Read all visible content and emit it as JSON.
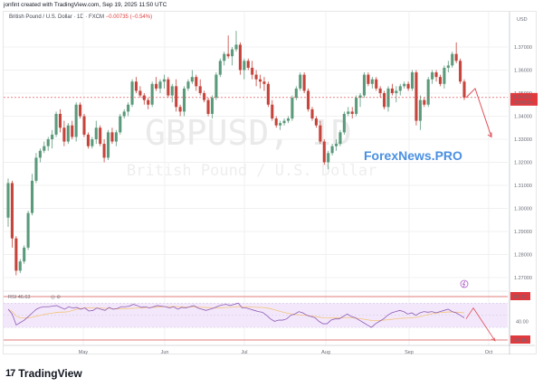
{
  "credit": "jonfint created with TradingView.com, Sep 19, 2025 11:50 UTC",
  "legend": {
    "symbol_desc": "British Pound / U.S. Dollar · 1D · FXCM",
    "change": "−0.00735 (−0.54%)"
  },
  "watermark": {
    "symbol": "GBPUSD, 1D",
    "description": "British Pound / U.S. Dollar"
  },
  "overlay_brand": "ForexNews.PRO",
  "price_axis": {
    "currency": "USD",
    "ticks": [
      "1.37000",
      "1.36000",
      "1.35000",
      "1.34000",
      "1.33000",
      "1.32000",
      "1.31000",
      "1.30000",
      "1.29000",
      "1.28000",
      "1.27000"
    ],
    "current_price": "1.34810",
    "countdown": "09:03:54"
  },
  "rsi": {
    "label": "RSI",
    "value": "46.63",
    "upper_level": "80.82",
    "mid_level": "40.00",
    "lower_level": "24.18"
  },
  "time_axis": {
    "ticks": [
      "May",
      "Jun",
      "Jul",
      "Aug",
      "Sep",
      "Oct"
    ]
  },
  "branding": {
    "logo_mark": "17",
    "logo_text": "TradingView"
  },
  "colors": {
    "up": "#5b9a7b",
    "down": "#c5443b",
    "rsi_line": "#8e5bb5",
    "rsi_ma": "#f2c57c",
    "rsi_band": "#f3e8fb",
    "level_line": "#d9534f",
    "forecast_arrow": "#e0505a",
    "price_label": "#e0393e",
    "brand_blue": "#4a90e2"
  },
  "chart_data": {
    "type": "candlestick",
    "title": "British Pound / U.S. Dollar · 1D · FXCM",
    "symbol": "GBPUSD",
    "interval": "1D",
    "ylabel": "USD",
    "ylim": [
      1.262,
      1.378
    ],
    "x_ticks": [
      "May",
      "Jun",
      "Jul",
      "Aug",
      "Sep",
      "Oct"
    ],
    "last_change": "−0.00735 (−0.54%)",
    "last_price": 1.3481,
    "candles": [
      [
        1.296,
        1.313,
        1.292,
        1.311
      ],
      [
        1.311,
        1.312,
        1.283,
        1.287
      ],
      [
        1.287,
        1.288,
        1.271,
        1.273
      ],
      [
        1.273,
        1.278,
        1.272,
        1.277
      ],
      [
        1.277,
        1.284,
        1.276,
        1.283
      ],
      [
        1.283,
        1.299,
        1.282,
        1.298
      ],
      [
        1.298,
        1.315,
        1.297,
        1.312
      ],
      [
        1.312,
        1.324,
        1.311,
        1.322
      ],
      [
        1.322,
        1.326,
        1.32,
        1.325
      ],
      [
        1.325,
        1.329,
        1.324,
        1.327
      ],
      [
        1.327,
        1.331,
        1.325,
        1.33
      ],
      [
        1.33,
        1.334,
        1.326,
        1.332
      ],
      [
        1.332,
        1.342,
        1.331,
        1.341
      ],
      [
        1.341,
        1.343,
        1.333,
        1.335
      ],
      [
        1.335,
        1.338,
        1.327,
        1.329
      ],
      [
        1.329,
        1.337,
        1.328,
        1.336
      ],
      [
        1.336,
        1.338,
        1.33,
        1.331
      ],
      [
        1.331,
        1.346,
        1.329,
        1.345
      ],
      [
        1.345,
        1.346,
        1.339,
        1.34
      ],
      [
        1.34,
        1.341,
        1.331,
        1.332
      ],
      [
        1.332,
        1.333,
        1.326,
        1.327
      ],
      [
        1.327,
        1.331,
        1.326,
        1.33
      ],
      [
        1.33,
        1.338,
        1.328,
        1.335
      ],
      [
        1.335,
        1.336,
        1.327,
        1.328
      ],
      [
        1.328,
        1.33,
        1.32,
        1.322
      ],
      [
        1.322,
        1.334,
        1.321,
        1.333
      ],
      [
        1.333,
        1.335,
        1.328,
        1.329
      ],
      [
        1.329,
        1.334,
        1.327,
        1.333
      ],
      [
        1.333,
        1.341,
        1.332,
        1.34
      ],
      [
        1.34,
        1.343,
        1.339,
        1.342
      ],
      [
        1.342,
        1.346,
        1.34,
        1.345
      ],
      [
        1.345,
        1.356,
        1.344,
        1.355
      ],
      [
        1.355,
        1.357,
        1.35,
        1.351
      ],
      [
        1.351,
        1.353,
        1.348,
        1.349
      ],
      [
        1.349,
        1.35,
        1.345,
        1.347
      ],
      [
        1.347,
        1.348,
        1.343,
        1.345
      ],
      [
        1.345,
        1.355,
        1.344,
        1.354
      ],
      [
        1.354,
        1.357,
        1.351,
        1.352
      ],
      [
        1.352,
        1.356,
        1.35,
        1.355
      ],
      [
        1.355,
        1.358,
        1.352,
        1.356
      ],
      [
        1.356,
        1.357,
        1.348,
        1.349
      ],
      [
        1.349,
        1.354,
        1.346,
        1.353
      ],
      [
        1.353,
        1.356,
        1.342,
        1.344
      ],
      [
        1.344,
        1.345,
        1.34,
        1.342
      ],
      [
        1.342,
        1.353,
        1.34,
        1.352
      ],
      [
        1.352,
        1.356,
        1.351,
        1.355
      ],
      [
        1.355,
        1.36,
        1.354,
        1.357
      ],
      [
        1.357,
        1.358,
        1.351,
        1.353
      ],
      [
        1.353,
        1.356,
        1.349,
        1.35
      ],
      [
        1.35,
        1.351,
        1.346,
        1.347
      ],
      [
        1.347,
        1.348,
        1.34,
        1.341
      ],
      [
        1.341,
        1.349,
        1.339,
        1.348
      ],
      [
        1.348,
        1.359,
        1.347,
        1.358
      ],
      [
        1.358,
        1.365,
        1.357,
        1.364
      ],
      [
        1.364,
        1.368,
        1.362,
        1.367
      ],
      [
        1.367,
        1.375,
        1.365,
        1.366
      ],
      [
        1.366,
        1.37,
        1.362,
        1.369
      ],
      [
        1.369,
        1.377,
        1.368,
        1.371
      ],
      [
        1.371,
        1.372,
        1.358,
        1.36
      ],
      [
        1.36,
        1.365,
        1.356,
        1.364
      ],
      [
        1.364,
        1.365,
        1.36,
        1.361
      ],
      [
        1.361,
        1.364,
        1.356,
        1.358
      ],
      [
        1.358,
        1.36,
        1.353,
        1.356
      ],
      [
        1.356,
        1.358,
        1.352,
        1.355
      ],
      [
        1.355,
        1.357,
        1.351,
        1.354
      ],
      [
        1.354,
        1.355,
        1.344,
        1.345
      ],
      [
        1.345,
        1.347,
        1.338,
        1.339
      ],
      [
        1.339,
        1.34,
        1.335,
        1.336
      ],
      [
        1.336,
        1.338,
        1.334,
        1.337
      ],
      [
        1.337,
        1.339,
        1.336,
        1.338
      ],
      [
        1.338,
        1.34,
        1.337,
        1.339
      ],
      [
        1.339,
        1.349,
        1.338,
        1.348
      ],
      [
        1.348,
        1.353,
        1.347,
        1.352
      ],
      [
        1.352,
        1.359,
        1.351,
        1.358
      ],
      [
        1.358,
        1.359,
        1.35,
        1.351
      ],
      [
        1.351,
        1.352,
        1.342,
        1.343
      ],
      [
        1.343,
        1.344,
        1.338,
        1.339
      ],
      [
        1.339,
        1.34,
        1.335,
        1.336
      ],
      [
        1.336,
        1.338,
        1.328,
        1.329
      ],
      [
        1.329,
        1.33,
        1.319,
        1.32
      ],
      [
        1.32,
        1.325,
        1.317,
        1.324
      ],
      [
        1.324,
        1.328,
        1.323,
        1.327
      ],
      [
        1.327,
        1.33,
        1.325,
        1.328
      ],
      [
        1.328,
        1.334,
        1.327,
        1.333
      ],
      [
        1.333,
        1.342,
        1.332,
        1.341
      ],
      [
        1.341,
        1.344,
        1.34,
        1.342
      ],
      [
        1.342,
        1.344,
        1.339,
        1.341
      ],
      [
        1.341,
        1.349,
        1.34,
        1.348
      ],
      [
        1.348,
        1.35,
        1.344,
        1.349
      ],
      [
        1.349,
        1.359,
        1.348,
        1.358
      ],
      [
        1.358,
        1.359,
        1.353,
        1.354
      ],
      [
        1.354,
        1.357,
        1.352,
        1.356
      ],
      [
        1.356,
        1.357,
        1.351,
        1.352
      ],
      [
        1.352,
        1.353,
        1.348,
        1.35
      ],
      [
        1.35,
        1.351,
        1.343,
        1.344
      ],
      [
        1.344,
        1.353,
        1.342,
        1.352
      ],
      [
        1.352,
        1.354,
        1.349,
        1.35
      ],
      [
        1.35,
        1.353,
        1.346,
        1.351
      ],
      [
        1.351,
        1.354,
        1.349,
        1.353
      ],
      [
        1.353,
        1.355,
        1.352,
        1.354
      ],
      [
        1.354,
        1.355,
        1.351,
        1.352
      ],
      [
        1.352,
        1.36,
        1.351,
        1.359
      ],
      [
        1.359,
        1.36,
        1.336,
        1.338
      ],
      [
        1.338,
        1.349,
        1.334,
        1.347
      ],
      [
        1.347,
        1.348,
        1.344,
        1.345
      ],
      [
        1.345,
        1.357,
        1.344,
        1.356
      ],
      [
        1.356,
        1.36,
        1.354,
        1.359
      ],
      [
        1.359,
        1.36,
        1.355,
        1.357
      ],
      [
        1.357,
        1.358,
        1.353,
        1.354
      ],
      [
        1.354,
        1.362,
        1.352,
        1.361
      ],
      [
        1.361,
        1.364,
        1.359,
        1.362
      ],
      [
        1.362,
        1.368,
        1.361,
        1.367
      ],
      [
        1.367,
        1.372,
        1.363,
        1.364
      ],
      [
        1.364,
        1.365,
        1.354,
        1.355
      ],
      [
        1.355,
        1.356,
        1.347,
        1.3481
      ]
    ],
    "candle_fields": [
      "open",
      "high",
      "low",
      "close"
    ],
    "forecast_path": [
      [
        1.3481,
        "now"
      ],
      [
        1.352,
        "+3d"
      ],
      [
        1.331,
        "+10d"
      ]
    ],
    "rsi": {
      "period_label": "RSI",
      "last_value": 46.63,
      "levels": {
        "upper": 80.82,
        "middle": 40.0,
        "lower": 24.18
      },
      "values": [
        60,
        52,
        34,
        38,
        42,
        48,
        54,
        60,
        63,
        64,
        64,
        65,
        66,
        63,
        60,
        64,
        62,
        63,
        60,
        62,
        57,
        58,
        62,
        60,
        58,
        63,
        60,
        61,
        64,
        64,
        65,
        68,
        66,
        63,
        64,
        62,
        64,
        66,
        65,
        64,
        62,
        64,
        60,
        63,
        62,
        64,
        66,
        62,
        60,
        58,
        60,
        62,
        65,
        67,
        68,
        66,
        68,
        70,
        62,
        62,
        60,
        58,
        56,
        55,
        50,
        44,
        40,
        42,
        42,
        44,
        50,
        52,
        56,
        54,
        50,
        48,
        46,
        40,
        36,
        36,
        42,
        44,
        44,
        48,
        52,
        48,
        46,
        42,
        38,
        34,
        30,
        36,
        40,
        44,
        50,
        54,
        56,
        58,
        56,
        52,
        54,
        50,
        54,
        56,
        55,
        56,
        54,
        56,
        58,
        60,
        56,
        54,
        50,
        46
      ]
    }
  }
}
